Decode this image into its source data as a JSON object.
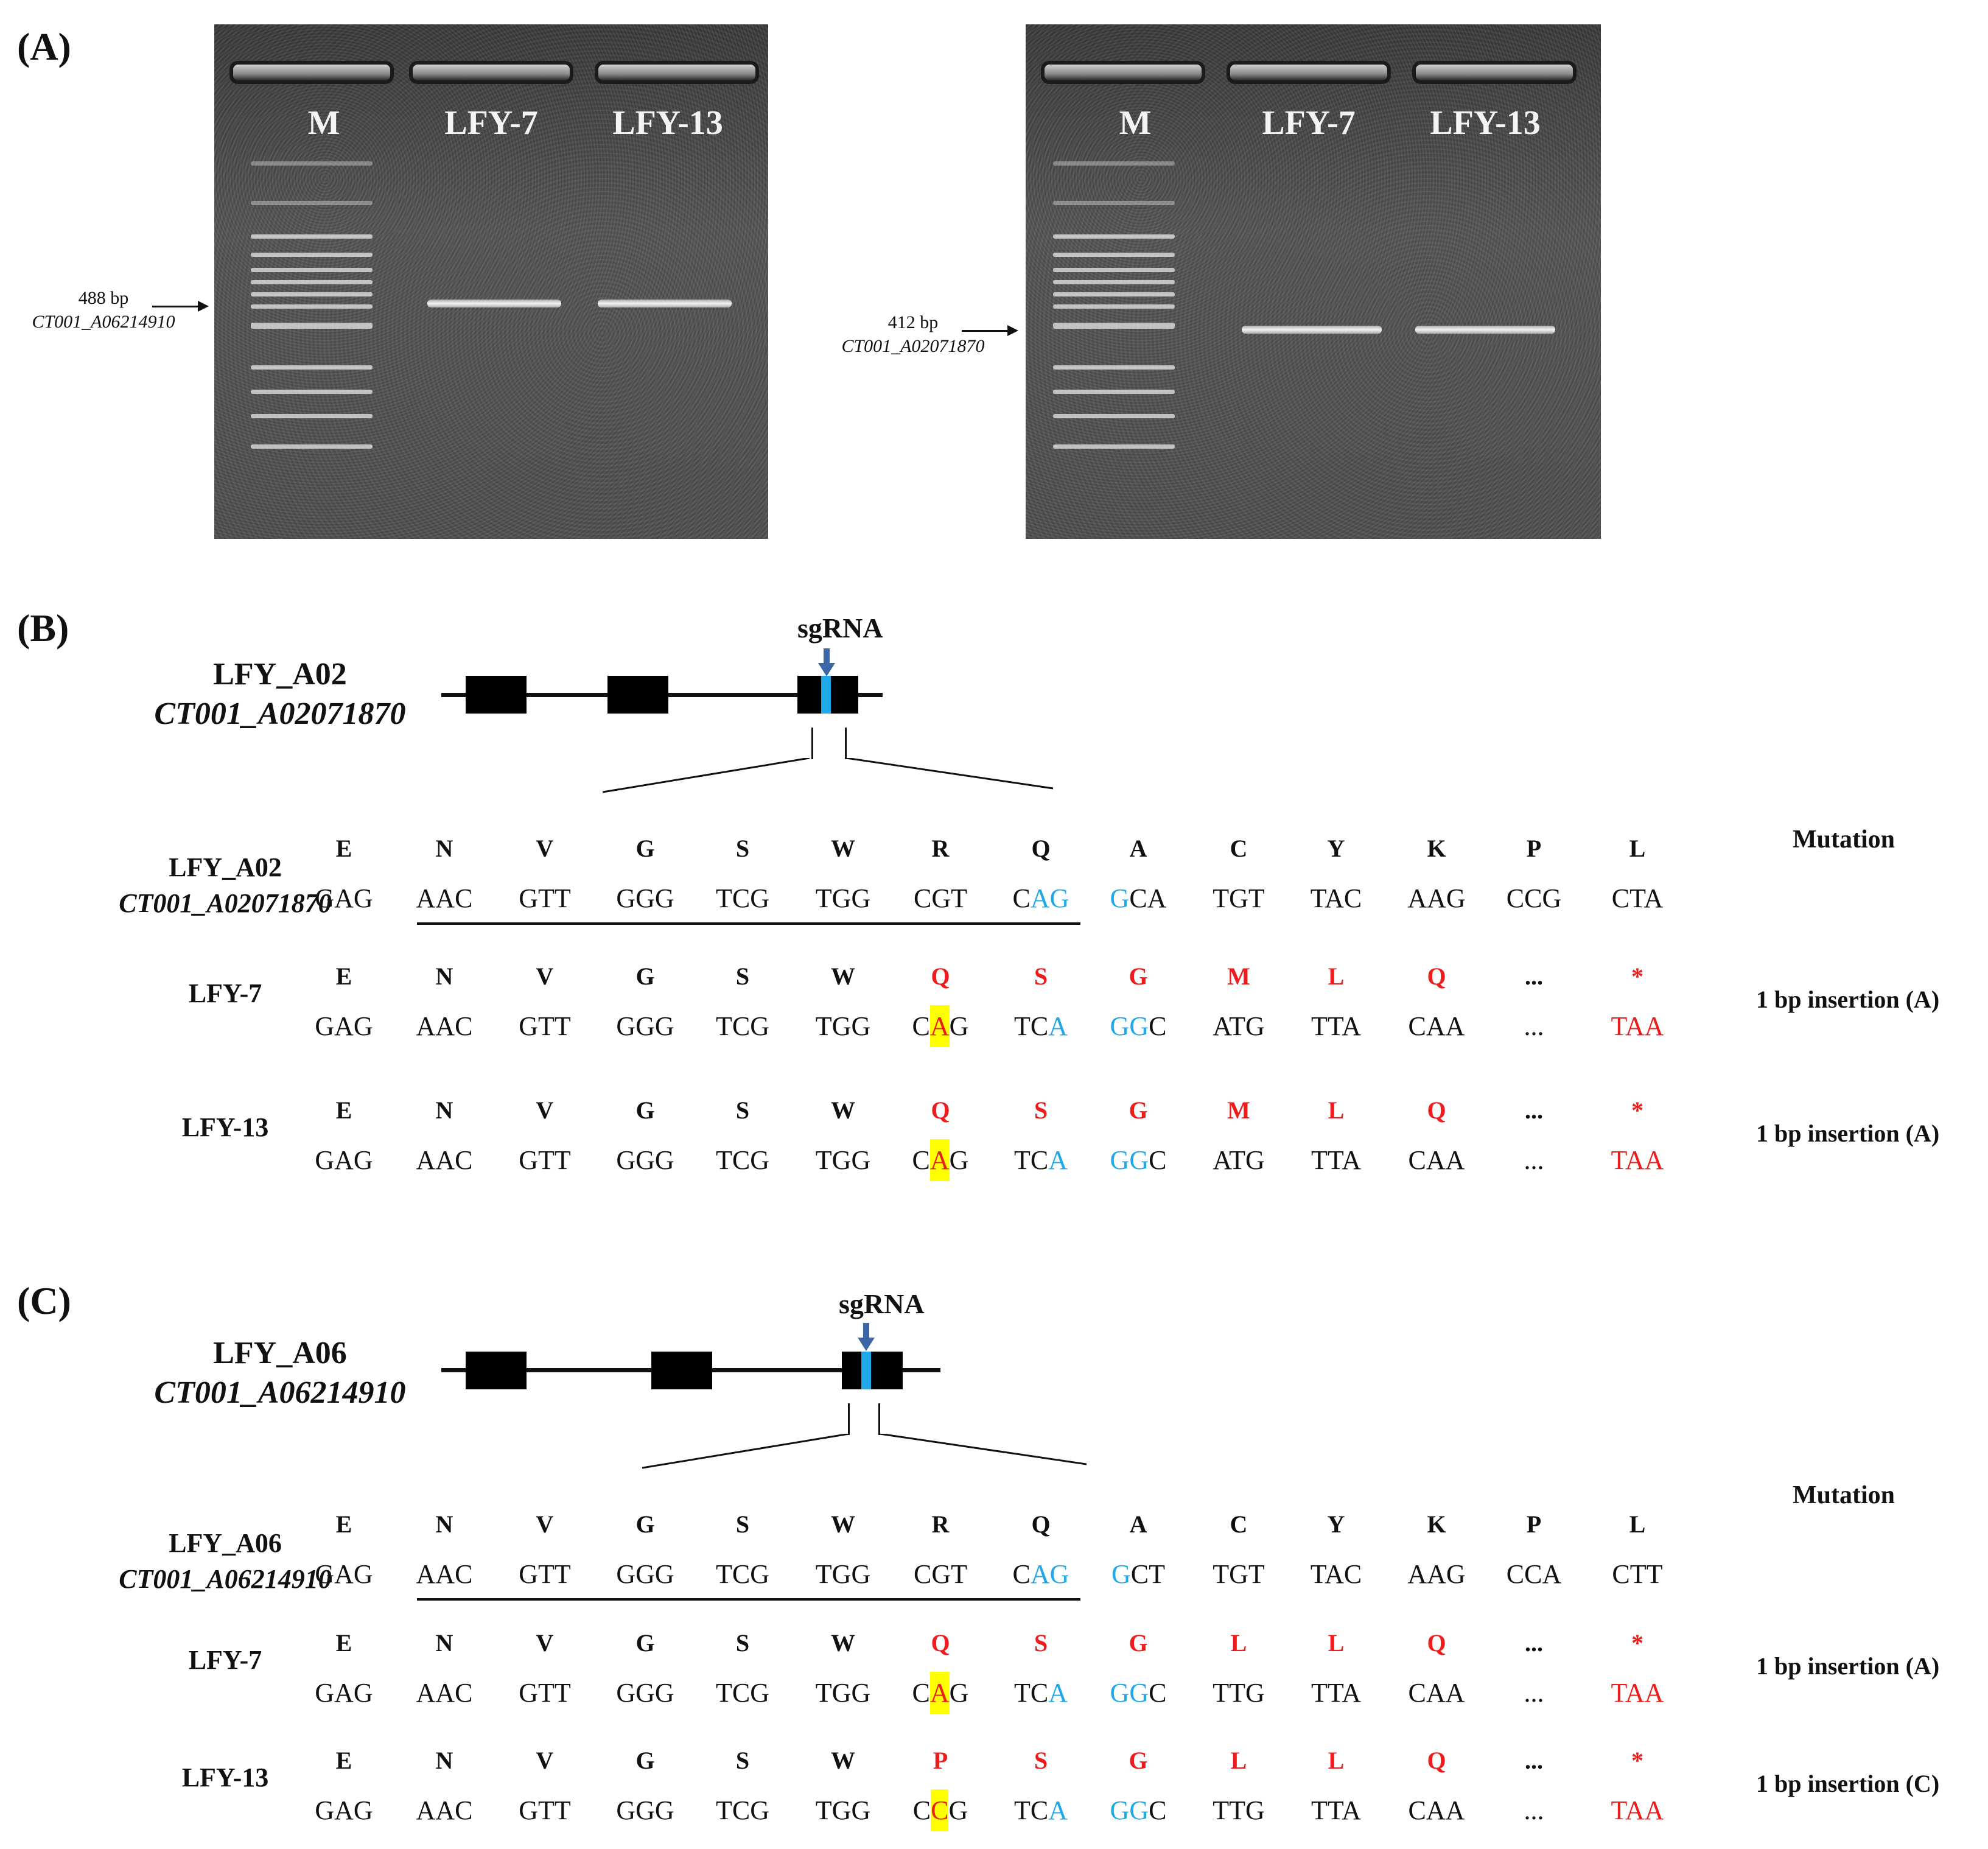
{
  "panel_a": {
    "label": "(A)",
    "gels": [
      {
        "lanes": [
          "M",
          "LFY-7",
          "LFY-13"
        ],
        "size": "488 bp",
        "gene": "CT001_A06214910"
      },
      {
        "lanes": [
          "M",
          "LFY-7",
          "LFY-13"
        ],
        "size": "412 bp",
        "gene": "CT001_A02071870"
      }
    ]
  },
  "panel_b": {
    "label": "(B)",
    "gene": "LFY_A02",
    "gene_id": "CT001_A02071870",
    "sgrna": "sgRNA",
    "mutation_header": "Mutation",
    "rows": [
      {
        "name": "LFY_A02",
        "id": "CT001_A02071870",
        "aa": [
          "E",
          "N",
          "V",
          "G",
          "S",
          "W",
          "R",
          "Q",
          "A",
          "C",
          "Y",
          "K",
          "P",
          "L"
        ],
        "codons": [
          "GAG",
          "AAC",
          "GTT",
          "GGG",
          "TCG",
          "TGG",
          "CGT",
          "CAG",
          "GCA",
          "TGT",
          "TAC",
          "AAG",
          "CCG",
          "CTA"
        ],
        "mutation": ""
      },
      {
        "name": "LFY-7",
        "id": "",
        "aa": [
          "E",
          "N",
          "V",
          "G",
          "S",
          "W",
          "Q",
          "S",
          "G",
          "M",
          "L",
          "Q",
          "...",
          "*"
        ],
        "codons": [
          "GAG",
          "AAC",
          "GTT",
          "GGG",
          "TCG",
          "TGG",
          "CAG",
          "TCA",
          "GGC",
          "ATG",
          "TTA",
          "CAA",
          "...",
          "TAA"
        ],
        "mutation": "1 bp insertion (A)"
      },
      {
        "name": "LFY-13",
        "id": "",
        "aa": [
          "E",
          "N",
          "V",
          "G",
          "S",
          "W",
          "Q",
          "S",
          "G",
          "M",
          "L",
          "Q",
          "...",
          "*"
        ],
        "codons": [
          "GAG",
          "AAC",
          "GTT",
          "GGG",
          "TCG",
          "TGG",
          "CAG",
          "TCA",
          "GGC",
          "ATG",
          "TTA",
          "CAA",
          "...",
          "TAA"
        ],
        "mutation": "1 bp insertion (A)"
      }
    ]
  },
  "panel_c": {
    "label": "(C)",
    "gene": "LFY_A06",
    "gene_id": "CT001_A06214910",
    "sgrna": "sgRNA",
    "mutation_header": "Mutation",
    "rows": [
      {
        "name": "LFY_A06",
        "id": "CT001_A06214910",
        "aa": [
          "E",
          "N",
          "V",
          "G",
          "S",
          "W",
          "R",
          "Q",
          "A",
          "C",
          "Y",
          "K",
          "P",
          "L"
        ],
        "codons": [
          "GAG",
          "AAC",
          "GTT",
          "GGG",
          "TCG",
          "TGG",
          "CGT",
          "CAG",
          "GCT",
          "TGT",
          "TAC",
          "AAG",
          "CCA",
          "CTT"
        ],
        "mutation": ""
      },
      {
        "name": "LFY-7",
        "id": "",
        "aa": [
          "E",
          "N",
          "V",
          "G",
          "S",
          "W",
          "Q",
          "S",
          "G",
          "L",
          "L",
          "Q",
          "...",
          "*"
        ],
        "codons": [
          "GAG",
          "AAC",
          "GTT",
          "GGG",
          "TCG",
          "TGG",
          "CAG",
          "TCA",
          "GGC",
          "TTG",
          "TTA",
          "CAA",
          "...",
          "TAA"
        ],
        "mutation": "1 bp insertion (A)"
      },
      {
        "name": "LFY-13",
        "id": "",
        "aa": [
          "E",
          "N",
          "V",
          "G",
          "S",
          "W",
          "P",
          "S",
          "G",
          "L",
          "L",
          "Q",
          "...",
          "*"
        ],
        "codons": [
          "GAG",
          "AAC",
          "GTT",
          "GGG",
          "TCG",
          "TGG",
          "CCG",
          "TCA",
          "GGC",
          "TTG",
          "TTA",
          "CAA",
          "...",
          "TAA"
        ],
        "mutation": "1 bp insertion (C)"
      }
    ]
  },
  "colors": {
    "mutant_aa": "#ee1c1c",
    "pam": "#1fa9e8",
    "insertion_highlight": "#ffff00"
  }
}
